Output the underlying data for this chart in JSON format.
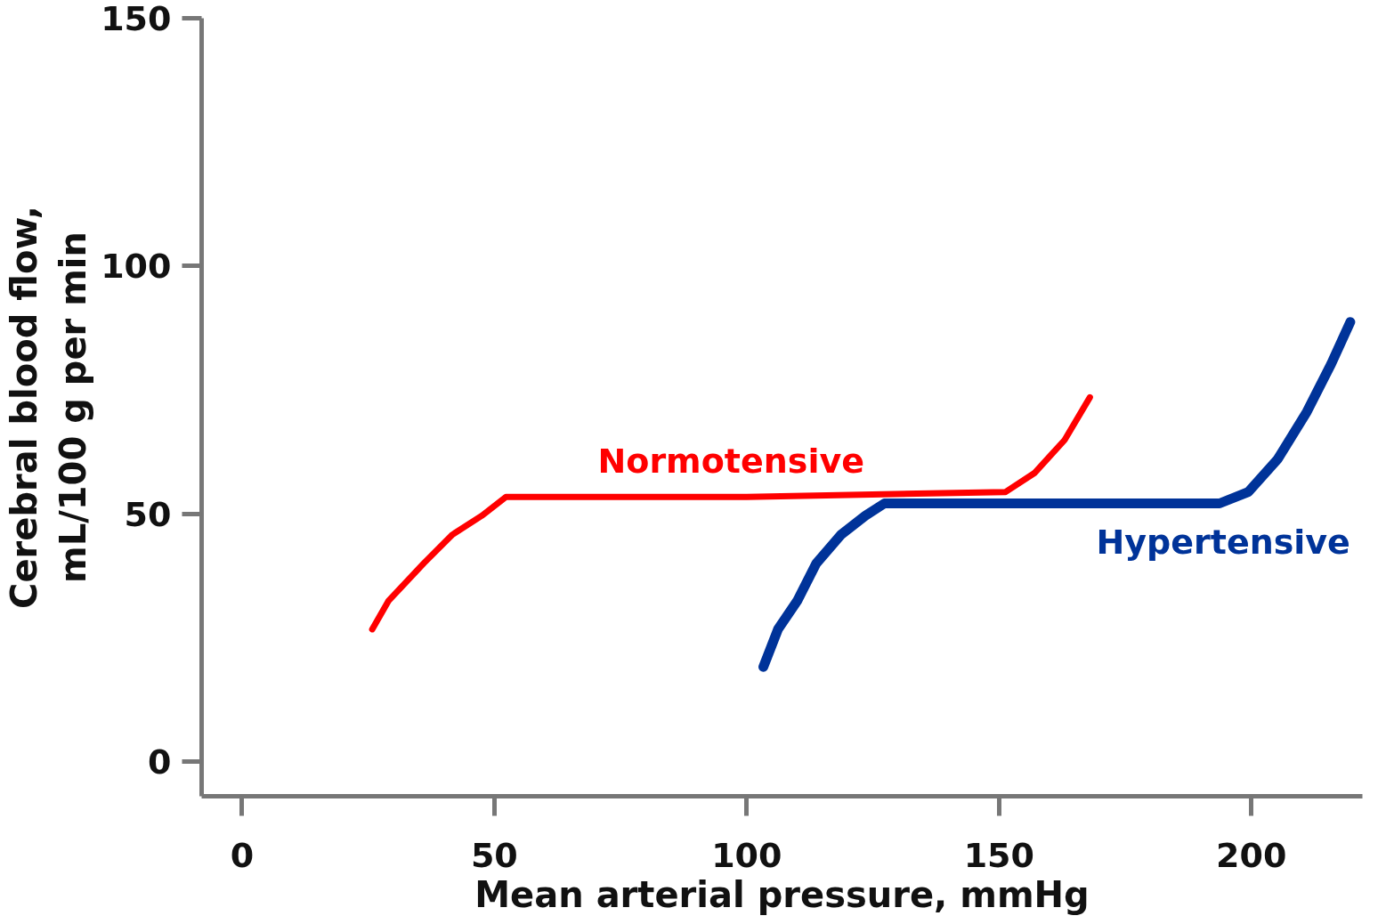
{
  "chart_data": {
    "type": "line",
    "xlabel": "Mean arterial pressure, mmHg",
    "ylabel": "Cerebral blood flow,\nmL/100 g per min",
    "xlim": [
      -8,
      222
    ],
    "ylim": [
      -7,
      150
    ],
    "xticks": [
      0,
      50,
      100,
      150,
      200
    ],
    "yticks": [
      0,
      50,
      100,
      150
    ],
    "grid": false,
    "legend": false,
    "marker": "none",
    "line_style": "solid",
    "series": [
      {
        "name": "Normotensive",
        "color": "#ff0000",
        "x": [
          25.8,
          29,
          36,
          41.7,
          47.5,
          52.3,
          100,
          151.3,
          157,
          163,
          168
        ],
        "values": [
          26.7,
          32.4,
          40,
          45.8,
          49.6,
          53.4,
          53.4,
          54.4,
          58.2,
          64.9,
          73.5
        ]
      },
      {
        "name": "Hypertensive",
        "color": "#003399",
        "x": [
          103.3,
          106.2,
          110,
          113.8,
          118.7,
          123.5,
          127.3,
          160,
          193.7,
          199.4,
          205.2,
          211,
          215.8,
          219.6
        ],
        "values": [
          19.1,
          26.7,
          32.4,
          40,
          45.8,
          49.6,
          52.1,
          52.1,
          52.1,
          54.4,
          61,
          70.6,
          80.2,
          88.7
        ]
      }
    ]
  }
}
